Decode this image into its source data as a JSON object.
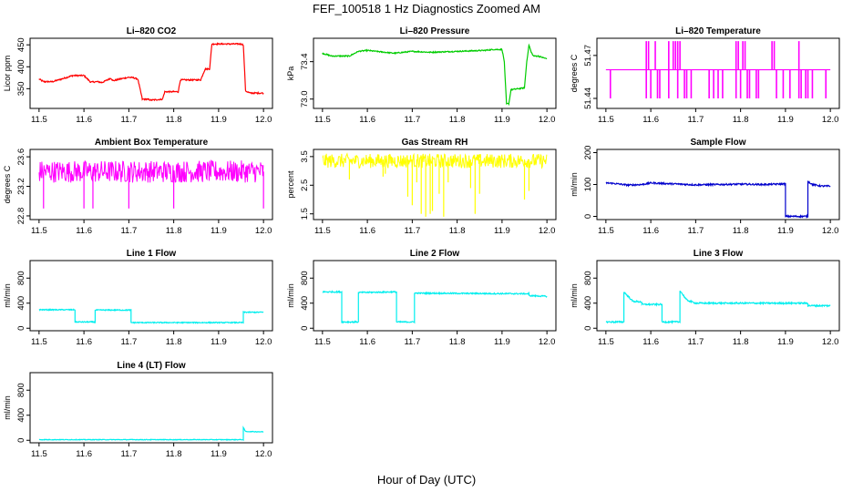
{
  "page": {
    "title": "FEF_100518  1 Hz Diagnostics Zoomed AM",
    "xlabel": "Hour of Day (UTC)"
  },
  "chart_data": [
    {
      "type": "line",
      "title": "Li–820 CO2",
      "ylabel": "Licor ppm",
      "color": "#ff0000",
      "xlim": [
        11.48,
        12.02
      ],
      "ylim": [
        305,
        465
      ],
      "xticks": [
        "11.5",
        "11.6",
        "11.7",
        "11.8",
        "11.9",
        "12.0"
      ],
      "yticks": [
        "350",
        "400",
        "450"
      ],
      "noise": 1.5,
      "series": [
        {
          "x": [
            11.5,
            11.51,
            11.53,
            11.55,
            11.575,
            11.585,
            11.6,
            11.615,
            11.63,
            11.64,
            11.66,
            11.665,
            11.68,
            11.7,
            11.71,
            11.72,
            11.73,
            11.74,
            11.75,
            11.775,
            11.78,
            11.8,
            11.81,
            11.815,
            11.85,
            11.86,
            11.87,
            11.88,
            11.885,
            11.9,
            11.95,
            11.955,
            11.96,
            11.97,
            12.0
          ],
          "y": [
            372,
            366,
            366,
            372,
            380,
            380,
            380,
            365,
            366,
            364,
            374,
            368,
            372,
            376,
            375,
            372,
            326,
            326,
            324,
            326,
            343,
            343,
            343,
            370,
            370,
            370,
            395,
            395,
            452,
            452,
            452,
            450,
            345,
            340,
            340
          ]
        }
      ]
    },
    {
      "type": "line",
      "title": "Li–820 Pressure",
      "ylabel": "kPa",
      "color": "#00cc00",
      "xlim": [
        11.48,
        12.02
      ],
      "ylim": [
        72.9,
        73.65
      ],
      "xticks": [
        "11.5",
        "11.6",
        "11.7",
        "11.8",
        "11.9",
        "12.0"
      ],
      "yticks": [
        "73.0",
        "73.4"
      ],
      "noise": 0.006,
      "series": [
        {
          "x": [
            11.5,
            11.52,
            11.56,
            11.58,
            11.6,
            11.66,
            11.7,
            11.74,
            11.8,
            11.86,
            11.88,
            11.9,
            11.905,
            11.91,
            11.915,
            11.92,
            11.95,
            11.955,
            11.96,
            11.965,
            11.97,
            11.98,
            12.0
          ],
          "y": [
            73.49,
            73.46,
            73.46,
            73.51,
            73.52,
            73.49,
            73.51,
            73.5,
            73.51,
            73.52,
            73.53,
            73.53,
            73.4,
            72.95,
            72.95,
            73.1,
            73.12,
            73.4,
            73.58,
            73.5,
            73.46,
            73.46,
            73.43
          ]
        }
      ]
    },
    {
      "type": "line",
      "title": "Li–820 Temperature",
      "ylabel": "degrees C",
      "color": "#ff00ff",
      "xlim": [
        11.48,
        12.02
      ],
      "ylim": [
        51.433,
        51.482
      ],
      "xticks": [
        "11.5",
        "11.6",
        "11.7",
        "11.8",
        "11.9",
        "12.0"
      ],
      "yticks": [
        "51.44",
        "51.47"
      ],
      "noise": 0,
      "baseline": 51.46,
      "high": 51.48,
      "low": 51.44,
      "up_spikes": [
        11.59,
        11.595,
        11.61,
        11.64,
        11.65,
        11.655,
        11.66,
        11.665,
        11.79,
        11.795,
        11.805,
        11.81,
        11.87,
        11.875,
        11.93
      ],
      "down_spikes": [
        11.51,
        11.59,
        11.6,
        11.615,
        11.62,
        11.64,
        11.66,
        11.675,
        11.68,
        11.69,
        11.73,
        11.74,
        11.75,
        11.76,
        11.79,
        11.8,
        11.815,
        11.82,
        11.835,
        11.84,
        11.88,
        11.895,
        11.91,
        11.93,
        11.935,
        11.945,
        11.95,
        11.96,
        11.99
      ]
    },
    {
      "type": "line",
      "title": "Ambient Box Temperature",
      "ylabel": "degrees C",
      "color": "#ff00ff",
      "xlim": [
        11.48,
        12.02
      ],
      "ylim": [
        22.75,
        23.7
      ],
      "xticks": [
        "11.5",
        "11.6",
        "11.7",
        "11.8",
        "11.9",
        "12.0"
      ],
      "yticks": [
        "22.8",
        "23.2",
        "23.6"
      ],
      "noise": 0,
      "level": 23.4,
      "band": [
        23.25,
        23.55
      ],
      "spikes_down": [
        11.6,
        11.8,
        11.7,
        11.62,
        12.0,
        11.51
      ],
      "spike_low": 22.9
    },
    {
      "type": "line",
      "title": "Gas Stream RH",
      "ylabel": "percent",
      "color": "#ffff00",
      "xlim": [
        11.48,
        12.02
      ],
      "ylim": [
        1.3,
        3.75
      ],
      "xticks": [
        "11.5",
        "11.6",
        "11.7",
        "11.8",
        "11.9",
        "12.0"
      ],
      "yticks": [
        "1.5",
        "2.5",
        "3.5"
      ],
      "noise": 0,
      "level": 3.4,
      "band": [
        3.1,
        3.6
      ],
      "dips_x": [
        11.69,
        11.7,
        11.72,
        11.73,
        11.74,
        11.745,
        11.76,
        11.77,
        11.84,
        11.85,
        11.78,
        11.83,
        11.95,
        11.96,
        11.635,
        11.56,
        11.64,
        11.71
      ],
      "dips_y": [
        2.1,
        1.8,
        1.5,
        1.4,
        1.5,
        1.6,
        2.2,
        1.4,
        1.5,
        2.2,
        2.6,
        2.4,
        2.0,
        2.3,
        2.8,
        2.7,
        2.9,
        2.6
      ]
    },
    {
      "type": "line",
      "title": "Sample Flow",
      "ylabel": "ml/min",
      "color": "#0000cc",
      "xlim": [
        11.48,
        12.02
      ],
      "ylim": [
        -10,
        210
      ],
      "xticks": [
        "11.5",
        "11.6",
        "11.7",
        "11.8",
        "11.9",
        "12.0"
      ],
      "yticks": [
        "0",
        "100",
        "200"
      ],
      "noise": 2.5,
      "series": [
        {
          "x": [
            11.5,
            11.52,
            11.55,
            11.58,
            11.6,
            11.65,
            11.7,
            11.75,
            11.8,
            11.85,
            11.9,
            11.9,
            11.95,
            11.95,
            11.96,
            11.98,
            12.0
          ],
          "y": [
            105,
            103,
            98,
            100,
            105,
            102,
            99,
            100,
            101,
            100,
            102,
            0,
            0,
            110,
            100,
            95,
            95
          ]
        }
      ]
    },
    {
      "type": "line",
      "title": "Line 1 Flow",
      "ylabel": "ml/min",
      "color": "#00eeee",
      "xlim": [
        11.48,
        12.02
      ],
      "ylim": [
        -40,
        1080
      ],
      "xticks": [
        "11.5",
        "11.6",
        "11.7",
        "11.8",
        "11.9",
        "12.0"
      ],
      "yticks": [
        "0",
        "400",
        "800"
      ],
      "noise": 8,
      "series": [
        {
          "x": [
            11.5,
            11.58,
            11.58,
            11.625,
            11.625,
            11.705,
            11.705,
            11.955,
            11.955,
            12.0
          ],
          "y": [
            295,
            295,
            100,
            100,
            290,
            290,
            90,
            90,
            255,
            255
          ]
        }
      ]
    },
    {
      "type": "line",
      "title": "Line 2 Flow",
      "ylabel": "ml/min",
      "color": "#00eeee",
      "xlim": [
        11.48,
        12.02
      ],
      "ylim": [
        -40,
        1080
      ],
      "xticks": [
        "11.5",
        "11.6",
        "11.7",
        "11.8",
        "11.9",
        "12.0"
      ],
      "yticks": [
        "0",
        "400",
        "800"
      ],
      "noise": 10,
      "series": [
        {
          "x": [
            11.5,
            11.543,
            11.543,
            11.58,
            11.58,
            11.665,
            11.665,
            11.705,
            11.705,
            11.96,
            11.96,
            12.0
          ],
          "y": [
            580,
            580,
            100,
            100,
            570,
            580,
            100,
            100,
            560,
            550,
            520,
            510
          ]
        }
      ]
    },
    {
      "type": "line",
      "title": "Line 3 Flow",
      "ylabel": "ml/min",
      "color": "#00eeee",
      "xlim": [
        11.48,
        12.02
      ],
      "ylim": [
        -40,
        1080
      ],
      "xticks": [
        "11.5",
        "11.6",
        "11.7",
        "11.8",
        "11.9",
        "12.0"
      ],
      "yticks": [
        "0",
        "400",
        "800"
      ],
      "noise": 12,
      "series": [
        {
          "x": [
            11.5,
            11.54,
            11.54,
            11.56,
            11.58,
            11.58,
            11.625,
            11.625,
            11.665,
            11.665,
            11.68,
            11.7,
            11.95,
            11.95,
            12.0
          ],
          "y": [
            100,
            100,
            580,
            430,
            420,
            380,
            380,
            100,
            100,
            600,
            450,
            400,
            400,
            360,
            360
          ]
        }
      ]
    },
    {
      "type": "line",
      "title": "Line 4 (LT) Flow",
      "ylabel": "ml/min",
      "color": "#00eeee",
      "xlim": [
        11.48,
        12.02
      ],
      "ylim": [
        -40,
        1080
      ],
      "xticks": [
        "11.5",
        "11.6",
        "11.7",
        "11.8",
        "11.9",
        "12.0"
      ],
      "yticks": [
        "0",
        "400",
        "800"
      ],
      "noise": 5,
      "series": [
        {
          "x": [
            11.5,
            11.955,
            11.955,
            11.96,
            12.0
          ],
          "y": [
            10,
            10,
            200,
            140,
            135
          ]
        }
      ]
    }
  ]
}
